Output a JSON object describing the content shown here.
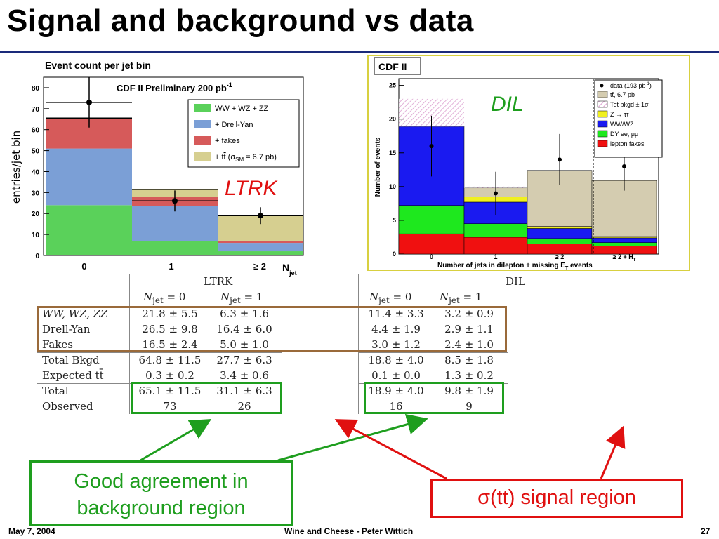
{
  "slide": {
    "title": "Signal and background vs data",
    "footer_left": "May 7, 2004",
    "footer_center": "Wine and Cheese - Peter Wittich",
    "footer_right": "27"
  },
  "callouts": {
    "good": [
      "Good agreement in",
      "background region"
    ],
    "signal_sigma": "σ",
    "signal_rest": "(tt) signal region"
  },
  "chart_data": [
    {
      "type": "bar",
      "stacked": true,
      "title": "Event count per jet bin",
      "inner_title": "CDF II Preliminary 200 pb",
      "inner_title_sup": "-1",
      "region_label": "LTRK",
      "ylabel": "entries/jet bin",
      "xlabel": "N",
      "xlabel_sub": "jet",
      "categories": [
        "0",
        "1",
        "≥ 2"
      ],
      "ylim": [
        0,
        85
      ],
      "yticks": [
        "0",
        "10",
        "20",
        "30",
        "40",
        "50",
        "60",
        "70",
        "80"
      ],
      "series": [
        {
          "name": "WW + WZ + ZZ",
          "color": "#5ad15a",
          "values": [
            24,
            7,
            2
          ]
        },
        {
          "name": "+ Drell-Yan",
          "color": "#7b9fd6",
          "values": [
            27,
            16.5,
            4
          ]
        },
        {
          "name": "+ fakes",
          "color": "#d65a5a",
          "values": [
            14.5,
            4.5,
            1
          ]
        },
        {
          "name": "+ tt̄ (σ_SM = 6.7 pb)",
          "color": "#d6cf90",
          "values": [
            0,
            3.5,
            12
          ]
        }
      ],
      "data": {
        "values": [
          73,
          26,
          19
        ],
        "errors": [
          12,
          5,
          4
        ]
      },
      "legend_labels": {
        "ww": "WW + WZ + ZZ",
        "dy": "+ Drell-Yan",
        "fk": "+ fakes",
        "tt_pre": "+ t",
        "tt_bar": "t",
        "tt_mid": " (σ",
        "tt_sub": "SM",
        "tt_post": " = 6.7 pb)"
      },
      "grid": false,
      "legend_position": "top-right"
    },
    {
      "type": "bar",
      "stacked": true,
      "title": "CDF II",
      "region_label": "DIL",
      "ylabel": "Number of events",
      "xlabel": "Number of jets in dilepton + missing E",
      "xlabel_sub": "T",
      "xlabel_post": " events",
      "categories": [
        "0",
        "1",
        "≥ 2",
        "≥ 2 + H"
      ],
      "category_sub_last": "T",
      "ylim": [
        0,
        26
      ],
      "yticks": [
        "0",
        "5",
        "10",
        "15",
        "20",
        "25"
      ],
      "series": [
        {
          "name": "lepton fakes",
          "color": "#f01010",
          "values": [
            3,
            2.5,
            1.5,
            1.2
          ]
        },
        {
          "name": "DY ee, μμ",
          "color": "#1ee81e",
          "values": [
            4.2,
            2,
            0.8,
            0.5
          ]
        },
        {
          "name": "WW/WZ",
          "color": "#1a1af0",
          "values": [
            11.7,
            3.2,
            1.5,
            0.7
          ]
        },
        {
          "name": "Z → ττ",
          "color": "#f0f020",
          "values": [
            0,
            0.8,
            0.3,
            0.2
          ]
        },
        {
          "name": "tt̄, 6.7 pb",
          "color": "#d4ccb0",
          "values": [
            0,
            1.3,
            8.3,
            8.3
          ]
        }
      ],
      "bkgd_band_top": [
        23,
        10,
        4.5,
        2.5
      ],
      "data": {
        "values": [
          16,
          9,
          14,
          13
        ],
        "errors": [
          4.5,
          3.2,
          3.8,
          3.6
        ]
      },
      "legend_labels": {
        "data": "data (193 pb",
        "data_sup": "-1",
        "data_post": ")",
        "tt": "tt̄, 6.7 pb",
        "tot": "Tot bkgd ± 1σ",
        "z": "Z → ττ",
        "ww": "WW/WZ",
        "dy": "DY ee, μμ",
        "fk": "lepton fakes"
      },
      "grid": false,
      "legend_position": "top-right"
    }
  ],
  "table_ltrk": {
    "header": "LTRK",
    "col0": "N",
    "col_sub": "jet",
    "col0_val": " = 0",
    "col1_val": " = 1",
    "rows": [
      {
        "label": "WW, WZ, ZZ",
        "italic": true,
        "v0": "21.8 ± 5.5",
        "v1": "6.3 ± 1.6"
      },
      {
        "label": "Drell-Yan",
        "v0": "26.5 ± 9.8",
        "v1": "16.4 ± 6.0"
      },
      {
        "label": "Fakes",
        "v0": "16.5 ± 2.4",
        "v1": "5.0 ± 1.0"
      },
      {
        "label": "Total Bkgd",
        "v0": "64.8 ± 11.5",
        "v1": "27.7 ± 6.3"
      },
      {
        "label": "Expected tt̄",
        "v0": "0.3 ± 0.2",
        "v1": "3.4 ± 0.6"
      },
      {
        "label": "Total",
        "v0": "65.1 ± 11.5",
        "v1": "31.1 ± 6.3"
      },
      {
        "label": "Observed",
        "v0": "73",
        "v1": "26"
      }
    ]
  },
  "table_dil": {
    "header": "DIL",
    "rows": [
      {
        "v0": "11.4 ± 3.3",
        "v1": "3.2 ± 0.9"
      },
      {
        "v0": "4.4 ± 1.9",
        "v1": "2.9 ± 1.1"
      },
      {
        "v0": "3.0 ± 1.2",
        "v1": "2.4 ± 1.0"
      },
      {
        "v0": "18.8 ± 4.0",
        "v1": "8.5 ± 1.8"
      },
      {
        "v0": "0.1 ± 0.0",
        "v1": "1.3 ± 0.2"
      },
      {
        "v0": "18.9 ± 4.0",
        "v1": "9.8 ± 1.9"
      },
      {
        "v0": "16",
        "v1": "9"
      }
    ]
  },
  "colors": {
    "green_box": "#1e9e1e",
    "red_box": "#e01010",
    "brown_box": "#9a6a3a",
    "title_rule": "#1a2a7a"
  }
}
